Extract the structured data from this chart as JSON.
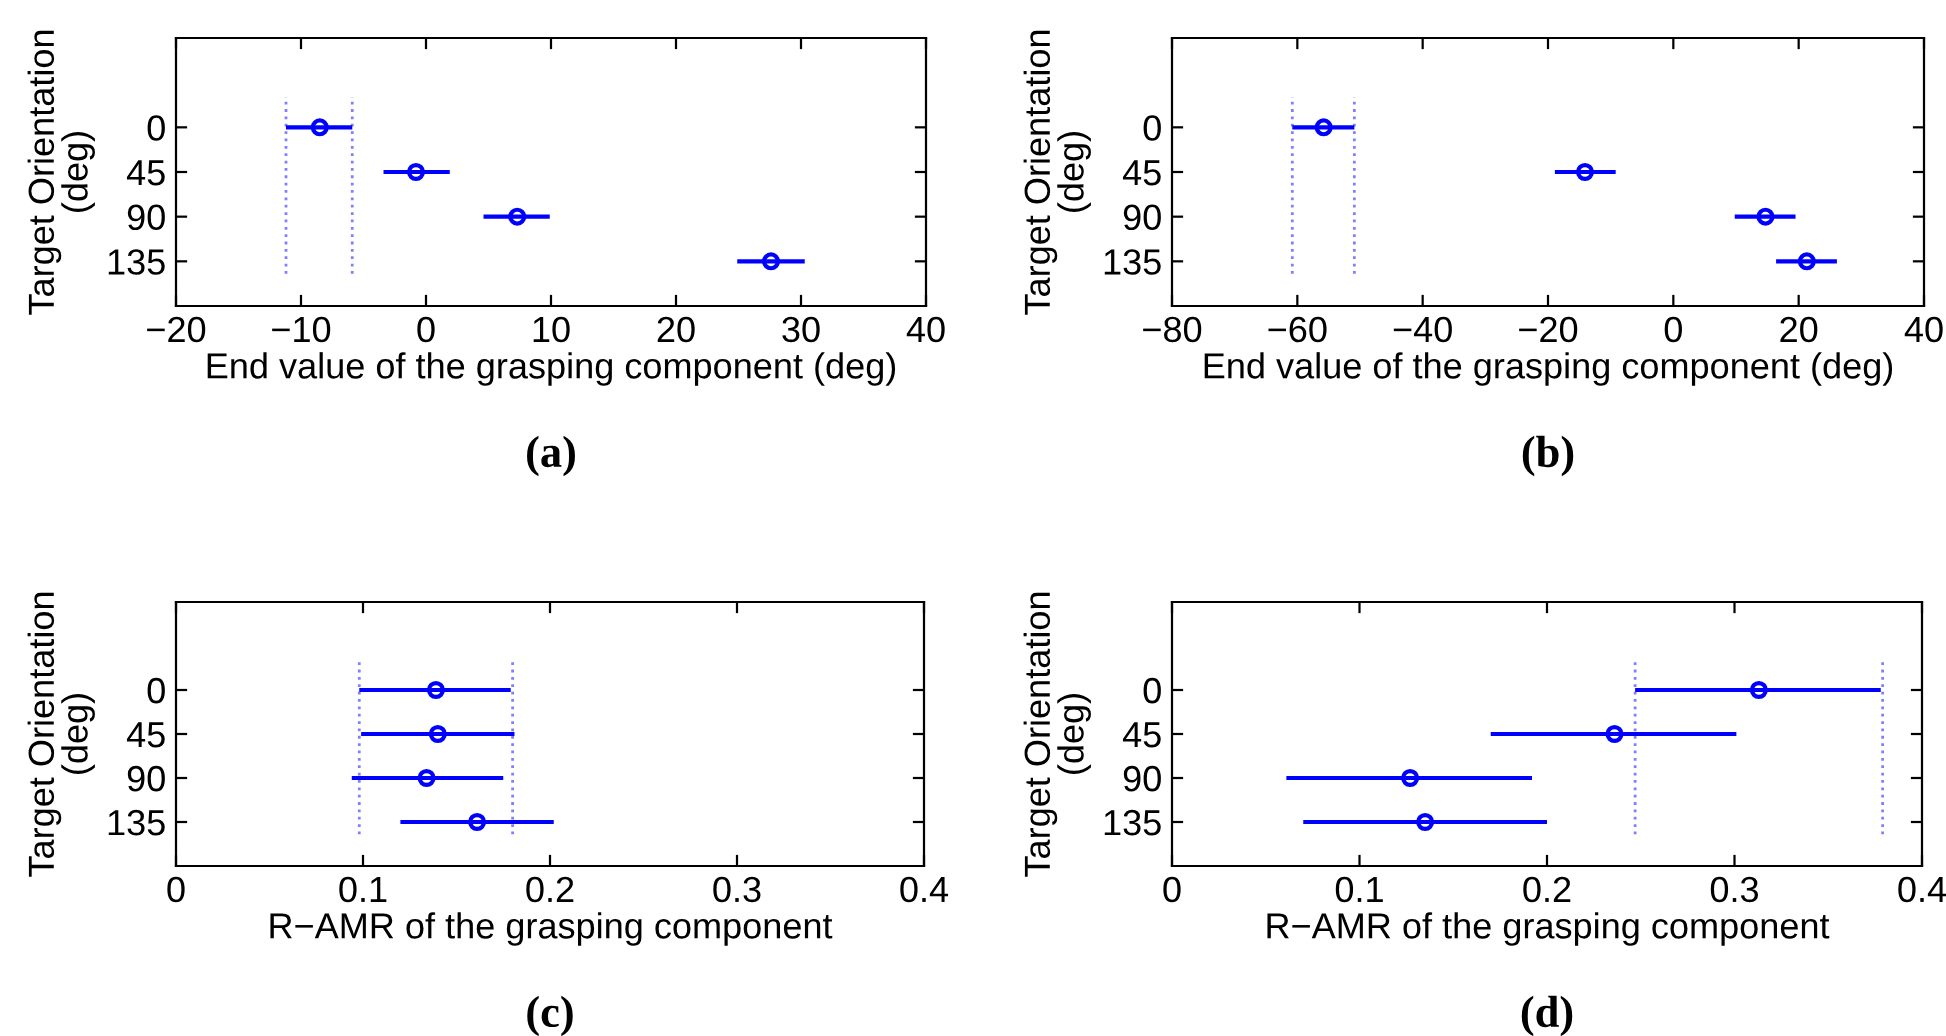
{
  "chart_data": [
    {
      "type": "scatter",
      "xlabel": "End value of the grasping component (deg)",
      "ylabel": "Target Orientation\n(deg)",
      "annotations": [
        "(a)"
      ],
      "marker": "circle",
      "grid": false,
      "legend": false,
      "series": [
        {
          "color": "#0000ff",
          "x": [
            -8.5,
            -0.8,
            7.3,
            27.6
          ],
          "values": [
            0,
            45,
            90,
            135
          ],
          "xerrors": [
            [
              -11.2,
              -5.9
            ],
            [
              -3.4,
              1.9
            ],
            [
              4.6,
              9.9
            ],
            [
              24.9,
              30.3
            ]
          ]
        }
      ],
      "ref_lines": [
        {
          "axis": "x",
          "value": -11.2,
          "color": "#8080ff",
          "line_style": "dotted"
        },
        {
          "axis": "x",
          "value": -5.9,
          "color": "#8080ff",
          "line_style": "dotted"
        }
      ],
      "xlim": [
        -20,
        40
      ],
      "xticks": [
        {
          "value": -20,
          "label": "−20"
        },
        {
          "value": -10,
          "label": "−10"
        },
        0,
        10,
        20,
        30,
        40
      ],
      "ylim": [
        180,
        -90
      ],
      "yticks": [
        0,
        45,
        90,
        135
      ]
    },
    {
      "type": "scatter",
      "xlabel": "End value of the grasping component (deg)",
      "ylabel": "Target Orientation\n(deg)",
      "annotations": [
        "(b)"
      ],
      "marker": "circle",
      "grid": false,
      "legend": false,
      "series": [
        {
          "color": "#0000ff",
          "x": [
            -55.8,
            -14.1,
            14.7,
            21.3
          ],
          "values": [
            0,
            45,
            90,
            135
          ],
          "xerrors": [
            [
              -60.8,
              -50.9
            ],
            [
              -18.9,
              -9.2
            ],
            [
              9.8,
              19.5
            ],
            [
              16.4,
              26.1
            ]
          ]
        }
      ],
      "ref_lines": [
        {
          "axis": "x",
          "value": -60.8,
          "color": "#8080ff",
          "line_style": "dotted"
        },
        {
          "axis": "x",
          "value": -50.9,
          "color": "#8080ff",
          "line_style": "dotted"
        }
      ],
      "xlim": [
        -80,
        40
      ],
      "xticks": [
        {
          "value": -80,
          "label": "−80"
        },
        {
          "value": -60,
          "label": "−60"
        },
        {
          "value": -40,
          "label": "−40"
        },
        {
          "value": -20,
          "label": "−20"
        },
        0,
        20,
        40
      ],
      "ylim": [
        180,
        -90
      ],
      "yticks": [
        0,
        45,
        90,
        135
      ]
    },
    {
      "type": "scatter",
      "xlabel": "R−AMR of the grasping component",
      "ylabel": "Target Orientation\n(deg)",
      "annotations": [
        "(c)"
      ],
      "marker": "circle",
      "grid": false,
      "legend": false,
      "series": [
        {
          "color": "#0000ff",
          "x": [
            0.139,
            0.14,
            0.134,
            0.161
          ],
          "values": [
            0,
            45,
            90,
            135
          ],
          "xerrors": [
            [
              0.098,
              0.179
            ],
            [
              0.099,
              0.181
            ],
            [
              0.094,
              0.175
            ],
            [
              0.12,
              0.202
            ]
          ]
        }
      ],
      "ref_lines": [
        {
          "axis": "x",
          "value": 0.098,
          "color": "#8080ff",
          "line_style": "dotted"
        },
        {
          "axis": "x",
          "value": 0.18,
          "color": "#8080ff",
          "line_style": "dotted"
        }
      ],
      "xlim": [
        0,
        0.4
      ],
      "xticks": [
        0,
        0.1,
        0.2,
        0.3,
        0.4
      ],
      "ylim": [
        180,
        -90
      ],
      "yticks": [
        0,
        45,
        90,
        135
      ]
    },
    {
      "type": "scatter",
      "xlabel": "R−AMR of the grasping component",
      "ylabel": "Target Orientation\n(deg)",
      "annotations": [
        "(d)"
      ],
      "marker": "circle",
      "grid": false,
      "legend": false,
      "series": [
        {
          "color": "#0000ff",
          "x": [
            0.313,
            0.236,
            0.127,
            0.135
          ],
          "values": [
            0,
            45,
            90,
            135
          ],
          "xerrors": [
            [
              0.247,
              0.378
            ],
            [
              0.17,
              0.301
            ],
            [
              0.061,
              0.192
            ],
            [
              0.07,
              0.2
            ]
          ]
        }
      ],
      "ref_lines": [
        {
          "axis": "x",
          "value": 0.247,
          "color": "#8080ff",
          "line_style": "dotted"
        },
        {
          "axis": "x",
          "value": 0.379,
          "color": "#8080ff",
          "line_style": "dotted"
        }
      ],
      "xlim": [
        0,
        0.4
      ],
      "xticks": [
        0,
        0.1,
        0.2,
        0.3,
        0.4
      ],
      "ylim": [
        180,
        -90
      ],
      "yticks": [
        0,
        45,
        90,
        135
      ]
    }
  ]
}
